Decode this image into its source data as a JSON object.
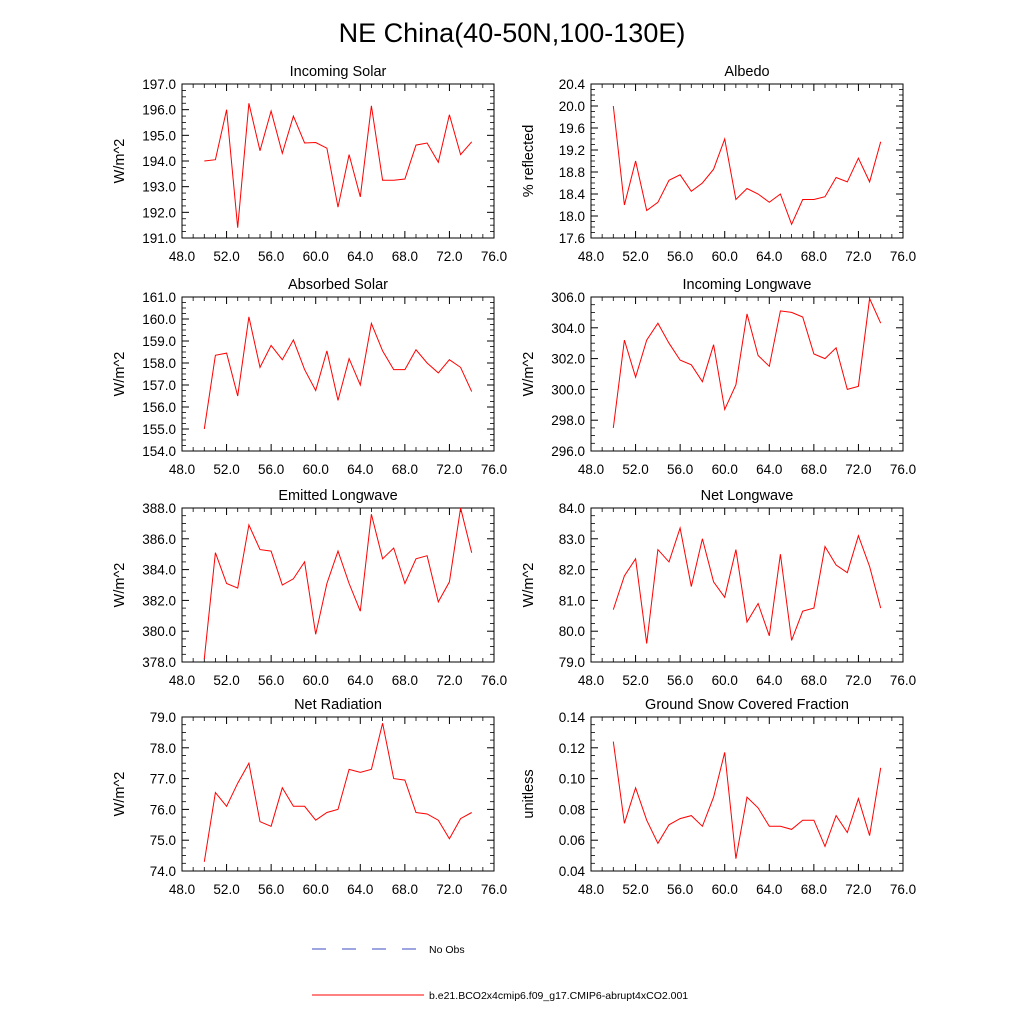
{
  "page_title": "NE China(40-50N,100-130E)",
  "legend": {
    "obs_label": "No Obs",
    "obs_color": "#3b4cc0",
    "model_label": "b.e21.BCO2x4cmip6.f09_g17.CMIP6-abrupt4xCO2.001",
    "model_color": "#ff0000"
  },
  "chart_data": [
    {
      "type": "line",
      "title": "Incoming Solar",
      "ylabel": "W/m^2",
      "xlim": [
        48,
        76
      ],
      "ylim": [
        191,
        197
      ],
      "xticks": [
        "48.0",
        "52.0",
        "56.0",
        "60.0",
        "64.0",
        "68.0",
        "72.0",
        "76.0"
      ],
      "yticks": [
        "191.0",
        "192.0",
        "193.0",
        "194.0",
        "195.0",
        "196.0",
        "197.0"
      ],
      "x": [
        50,
        51,
        52,
        53,
        54,
        55,
        56,
        57,
        58,
        59,
        60,
        61,
        62,
        63,
        64,
        65,
        66,
        67,
        68,
        69,
        70,
        71,
        72,
        73,
        74
      ],
      "values": [
        194.0,
        194.05,
        196.0,
        191.4,
        196.25,
        194.4,
        195.95,
        194.3,
        195.75,
        194.7,
        194.72,
        194.5,
        192.2,
        194.25,
        192.6,
        196.15,
        193.25,
        193.25,
        193.3,
        194.62,
        194.7,
        193.95,
        195.8,
        194.25,
        194.75
      ]
    },
    {
      "type": "line",
      "title": "Albedo",
      "ylabel": "% reflected",
      "xlim": [
        48,
        76
      ],
      "ylim": [
        17.6,
        20.4
      ],
      "xticks": [
        "48.0",
        "52.0",
        "56.0",
        "60.0",
        "64.0",
        "68.0",
        "72.0",
        "76.0"
      ],
      "yticks": [
        "17.6",
        "18.0",
        "18.4",
        "18.8",
        "19.2",
        "19.6",
        "20.0",
        "20.4"
      ],
      "x": [
        50,
        51,
        52,
        53,
        54,
        55,
        56,
        57,
        58,
        59,
        60,
        61,
        62,
        63,
        64,
        65,
        66,
        67,
        68,
        69,
        70,
        71,
        72,
        73,
        74
      ],
      "values": [
        20.0,
        18.2,
        19.0,
        18.1,
        18.25,
        18.65,
        18.75,
        18.45,
        18.6,
        18.85,
        19.4,
        18.3,
        18.5,
        18.4,
        18.25,
        18.4,
        17.85,
        18.3,
        18.3,
        18.35,
        18.7,
        18.62,
        19.05,
        18.62,
        19.35
      ]
    },
    {
      "type": "line",
      "title": "Absorbed Solar",
      "ylabel": "W/m^2",
      "xlim": [
        48,
        76
      ],
      "ylim": [
        154,
        161
      ],
      "xticks": [
        "48.0",
        "52.0",
        "56.0",
        "60.0",
        "64.0",
        "68.0",
        "72.0",
        "76.0"
      ],
      "yticks": [
        "154.0",
        "155.0",
        "156.0",
        "157.0",
        "158.0",
        "159.0",
        "160.0",
        "161.0"
      ],
      "x": [
        50,
        51,
        52,
        53,
        54,
        55,
        56,
        57,
        58,
        59,
        60,
        61,
        62,
        63,
        64,
        65,
        66,
        67,
        68,
        69,
        70,
        71,
        72,
        73,
        74
      ],
      "values": [
        155.0,
        158.35,
        158.45,
        156.5,
        160.1,
        157.8,
        158.8,
        158.15,
        159.05,
        157.7,
        156.75,
        158.55,
        156.3,
        158.2,
        157.0,
        159.8,
        158.55,
        157.7,
        157.7,
        158.6,
        158.0,
        157.55,
        158.15,
        157.8,
        156.7
      ]
    },
    {
      "type": "line",
      "title": "Incoming Longwave",
      "ylabel": "W/m^2",
      "xlim": [
        48,
        76
      ],
      "ylim": [
        296,
        306
      ],
      "xticks": [
        "48.0",
        "52.0",
        "56.0",
        "60.0",
        "64.0",
        "68.0",
        "72.0",
        "76.0"
      ],
      "yticks": [
        "296.0",
        "298.0",
        "300.0",
        "302.0",
        "304.0",
        "306.0"
      ],
      "x": [
        50,
        51,
        52,
        53,
        54,
        55,
        56,
        57,
        58,
        59,
        60,
        61,
        62,
        63,
        64,
        65,
        66,
        67,
        68,
        69,
        70,
        71,
        72,
        73,
        74
      ],
      "values": [
        297.5,
        303.2,
        300.8,
        303.2,
        304.3,
        303.0,
        301.9,
        301.6,
        300.5,
        302.9,
        298.7,
        300.3,
        304.9,
        302.2,
        301.5,
        305.1,
        305.0,
        304.7,
        302.3,
        302.0,
        302.7,
        300.0,
        300.2,
        305.9,
        304.3
      ]
    },
    {
      "type": "line",
      "title": "Emitted Longwave",
      "ylabel": "W/m^2",
      "xlim": [
        48,
        76
      ],
      "ylim": [
        378,
        388
      ],
      "xticks": [
        "48.0",
        "52.0",
        "56.0",
        "60.0",
        "64.0",
        "68.0",
        "72.0",
        "76.0"
      ],
      "yticks": [
        "378.0",
        "380.0",
        "382.0",
        "384.0",
        "386.0",
        "388.0"
      ],
      "x": [
        50,
        51,
        52,
        53,
        54,
        55,
        56,
        57,
        58,
        59,
        60,
        61,
        62,
        63,
        64,
        65,
        66,
        67,
        68,
        69,
        70,
        71,
        72,
        73,
        74
      ],
      "values": [
        378.2,
        385.1,
        383.1,
        382.8,
        386.9,
        385.3,
        385.2,
        383.0,
        383.4,
        384.5,
        379.8,
        383.1,
        385.2,
        383.1,
        381.3,
        387.6,
        384.7,
        385.4,
        383.1,
        384.7,
        384.9,
        381.9,
        383.2,
        388.0,
        385.1
      ]
    },
    {
      "type": "line",
      "title": "Net Longwave",
      "ylabel": "W/m^2",
      "xlim": [
        48,
        76
      ],
      "ylim": [
        79,
        84
      ],
      "xticks": [
        "48.0",
        "52.0",
        "56.0",
        "60.0",
        "64.0",
        "68.0",
        "72.0",
        "76.0"
      ],
      "yticks": [
        "79.0",
        "80.0",
        "81.0",
        "82.0",
        "83.0",
        "84.0"
      ],
      "x": [
        50,
        51,
        52,
        53,
        54,
        55,
        56,
        57,
        58,
        59,
        60,
        61,
        62,
        63,
        64,
        65,
        66,
        67,
        68,
        69,
        70,
        71,
        72,
        73,
        74
      ],
      "values": [
        80.7,
        81.8,
        82.35,
        79.6,
        82.65,
        82.25,
        83.35,
        81.45,
        83.0,
        81.6,
        81.1,
        82.65,
        80.3,
        80.9,
        79.85,
        82.5,
        79.7,
        80.65,
        80.75,
        82.75,
        82.15,
        81.9,
        83.1,
        82.1,
        80.75
      ]
    },
    {
      "type": "line",
      "title": "Net Radiation",
      "ylabel": "W/m^2",
      "xlim": [
        48,
        76
      ],
      "ylim": [
        74,
        79
      ],
      "xticks": [
        "48.0",
        "52.0",
        "56.0",
        "60.0",
        "64.0",
        "68.0",
        "72.0",
        "76.0"
      ],
      "yticks": [
        "74.0",
        "75.0",
        "76.0",
        "77.0",
        "78.0",
        "79.0"
      ],
      "x": [
        50,
        51,
        52,
        53,
        54,
        55,
        56,
        57,
        58,
        59,
        60,
        61,
        62,
        63,
        64,
        65,
        66,
        67,
        68,
        69,
        70,
        71,
        72,
        73,
        74
      ],
      "values": [
        74.3,
        76.55,
        76.1,
        76.85,
        77.5,
        75.6,
        75.45,
        76.7,
        76.1,
        76.1,
        75.65,
        75.9,
        76.0,
        77.3,
        77.2,
        77.3,
        78.8,
        77.0,
        76.95,
        75.9,
        75.85,
        75.65,
        75.05,
        75.7,
        75.9
      ]
    },
    {
      "type": "line",
      "title": "Ground Snow Covered Fraction",
      "ylabel": "unitless",
      "xlim": [
        48,
        76
      ],
      "ylim": [
        0.04,
        0.14
      ],
      "xticks": [
        "48.0",
        "52.0",
        "56.0",
        "60.0",
        "64.0",
        "68.0",
        "72.0",
        "76.0"
      ],
      "yticks": [
        "0.04",
        "0.06",
        "0.08",
        "0.10",
        "0.12",
        "0.14"
      ],
      "x": [
        50,
        51,
        52,
        53,
        54,
        55,
        56,
        57,
        58,
        59,
        60,
        61,
        62,
        63,
        64,
        65,
        66,
        67,
        68,
        69,
        70,
        71,
        72,
        73,
        74
      ],
      "values": [
        0.124,
        0.071,
        0.094,
        0.073,
        0.058,
        0.07,
        0.074,
        0.076,
        0.069,
        0.088,
        0.117,
        0.048,
        0.088,
        0.081,
        0.069,
        0.069,
        0.067,
        0.073,
        0.073,
        0.056,
        0.076,
        0.065,
        0.087,
        0.063,
        0.107
      ]
    }
  ]
}
